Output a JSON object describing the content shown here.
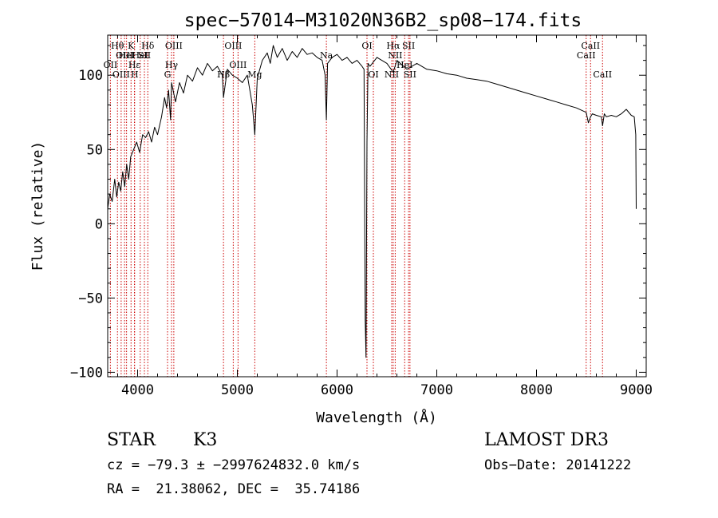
{
  "chart_data": {
    "type": "line",
    "title": "spec−57014−M31020N36B2_sp08−174.fits",
    "xlabel": "Wavelength (Å)",
    "ylabel": "Flux (relative)",
    "xlim": [
      3700,
      9100
    ],
    "ylim": [
      -103,
      127
    ],
    "xticks": [
      4000,
      5000,
      6000,
      7000,
      8000,
      9000
    ],
    "xtick_labels": [
      "4000",
      "5000",
      "6000",
      "7000",
      "8000",
      "9000"
    ],
    "yticks": [
      -100,
      -50,
      0,
      50,
      100
    ],
    "ytick_labels": [
      "−100",
      "−50",
      "0",
      "50",
      "100"
    ],
    "grid": false,
    "legend": "none",
    "series": [
      {
        "name": "flux",
        "x": [
          3700,
          3720,
          3745,
          3770,
          3790,
          3810,
          3830,
          3850,
          3870,
          3890,
          3910,
          3930,
          3960,
          3990,
          4020,
          4050,
          4080,
          4110,
          4140,
          4170,
          4200,
          4240,
          4270,
          4290,
          4310,
          4330,
          4340,
          4380,
          4420,
          4460,
          4500,
          4550,
          4600,
          4650,
          4700,
          4750,
          4800,
          4850,
          4861,
          4900,
          4950,
          5000,
          5050,
          5100,
          5150,
          5175,
          5200,
          5250,
          5300,
          5330,
          5360,
          5400,
          5450,
          5500,
          5550,
          5600,
          5650,
          5700,
          5750,
          5800,
          5850,
          5880,
          5893,
          5905,
          5950,
          6000,
          6050,
          6100,
          6150,
          6200,
          6250,
          6270,
          6282,
          6290,
          6300,
          6310,
          6330,
          6400,
          6500,
          6563,
          6600,
          6700,
          6800,
          6900,
          7000,
          7100,
          7200,
          7300,
          7400,
          7500,
          7600,
          7700,
          7800,
          7900,
          8000,
          8100,
          8200,
          8300,
          8400,
          8498,
          8520,
          8542,
          8560,
          8600,
          8650,
          8662,
          8680,
          8700,
          8750,
          8800,
          8850,
          8900,
          8950,
          8980,
          8995,
          9000
        ],
        "values": [
          10,
          20,
          15,
          30,
          18,
          28,
          22,
          35,
          25,
          40,
          30,
          45,
          50,
          55,
          48,
          60,
          58,
          62,
          55,
          65,
          60,
          72,
          85,
          78,
          90,
          70,
          95,
          82,
          95,
          88,
          100,
          96,
          105,
          100,
          108,
          103,
          106,
          100,
          85,
          104,
          100,
          98,
          95,
          100,
          80,
          60,
          98,
          110,
          115,
          108,
          120,
          112,
          118,
          110,
          116,
          112,
          118,
          114,
          115,
          112,
          110,
          100,
          70,
          108,
          112,
          114,
          110,
          112,
          108,
          110,
          106,
          104,
          -65,
          -90,
          55,
          108,
          106,
          112,
          108,
          102,
          110,
          104,
          108,
          104,
          103,
          101,
          100,
          98,
          97,
          96,
          94,
          92,
          90,
          88,
          86,
          84,
          82,
          80,
          78,
          75,
          68,
          72,
          74,
          73,
          72,
          66,
          74,
          72,
          73,
          72,
          74,
          77,
          73,
          72,
          60,
          10
        ]
      }
    ],
    "line_markers": [
      {
        "x": 3727,
        "label": "OII",
        "row": 2
      },
      {
        "x": 3798,
        "label": "Hθ",
        "row": 0
      },
      {
        "x": 3835,
        "label": "OIII",
        "row": 3
      },
      {
        "x": 3869,
        "label": "OIII",
        "row": 1
      },
      {
        "x": 3889,
        "label": "HeI",
        "row": 1
      },
      {
        "x": 3934,
        "label": "K",
        "row": 0
      },
      {
        "x": 3968,
        "label": "Hε",
        "row": 2
      },
      {
        "x": 3970,
        "label": "H",
        "row": 3
      },
      {
        "x": 4026,
        "label": "HeI",
        "row": 1
      },
      {
        "x": 4068,
        "label": "SII",
        "row": 1
      },
      {
        "x": 4102,
        "label": "Hδ",
        "row": 0
      },
      {
        "x": 4300,
        "label": "G",
        "row": 3
      },
      {
        "x": 4340,
        "label": "Hγ",
        "row": 2
      },
      {
        "x": 4363,
        "label": "OIII",
        "row": 0
      },
      {
        "x": 4861,
        "label": "Hβ",
        "row": 3
      },
      {
        "x": 4959,
        "label": "OIII",
        "row": 0
      },
      {
        "x": 5007,
        "label": "OIII",
        "row": 2
      },
      {
        "x": 5175,
        "label": "Mg",
        "row": 3
      },
      {
        "x": 5893,
        "label": "Na",
        "row": 1
      },
      {
        "x": 6300,
        "label": "OI",
        "row": 0
      },
      {
        "x": 6364,
        "label": "OI",
        "row": 3
      },
      {
        "x": 6548,
        "label": "NII",
        "row": 3
      },
      {
        "x": 6563,
        "label": "Hα",
        "row": 0
      },
      {
        "x": 6583,
        "label": "NII",
        "row": 1
      },
      {
        "x": 6678,
        "label": "HeI",
        "row": 2
      },
      {
        "x": 6717,
        "label": "SII",
        "row": 0
      },
      {
        "x": 6731,
        "label": "SII",
        "row": 3
      },
      {
        "x": 8498,
        "label": "CaII",
        "row": 1
      },
      {
        "x": 8542,
        "label": "CaII",
        "row": 0
      },
      {
        "x": 8662,
        "label": "CaII",
        "row": 3
      }
    ]
  },
  "info": {
    "object_class": "STAR",
    "subclass": "K3",
    "survey": "LAMOST DR3",
    "cz": "cz = −79.3 ± −2997624832.0 km/s",
    "obs_date": "Obs−Date: 20141222",
    "coords": "RA =  21.38062, DEC =  35.74186"
  },
  "colors": {
    "spectrum": "#000000",
    "marker_line": "#cc0000",
    "axes": "#000000"
  }
}
